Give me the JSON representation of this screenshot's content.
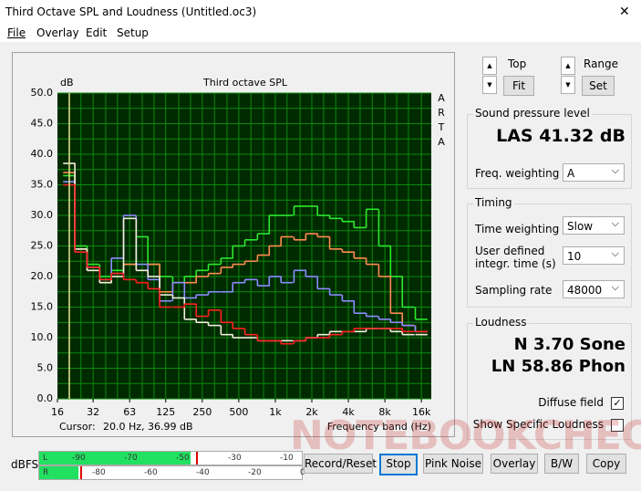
{
  "window": {
    "title": "Third Octave SPL and Loudness (Untitled.oc3)",
    "close": "✕"
  },
  "menu": [
    "File",
    "Overlay",
    "Edit",
    "Setup"
  ],
  "chart_data": {
    "type": "step-line",
    "title": "Third octave SPL",
    "y_label": "dB",
    "x_label": "Frequency band (Hz)",
    "side_label": [
      "A",
      "R",
      "T",
      "A"
    ],
    "cursor": {
      "label": "Cursor:",
      "value": "20.0 Hz, 36.99 dB"
    },
    "x_scale": "log",
    "x": [
      20,
      25,
      31.5,
      40,
      50,
      63,
      80,
      100,
      125,
      160,
      200,
      250,
      315,
      400,
      500,
      630,
      800,
      1000,
      1250,
      1600,
      2000,
      2500,
      3150,
      4000,
      5000,
      6300,
      8000,
      10000,
      12500,
      16000
    ],
    "xlim": [
      16,
      19300
    ],
    "xticks": [
      16,
      {
        "value": 31.5,
        "label": "32"
      },
      63,
      125,
      250,
      500,
      {
        "value": 1000,
        "label": "1k"
      },
      {
        "value": 2000,
        "label": "2k"
      },
      {
        "value": 4000,
        "label": "4k"
      },
      {
        "value": 8000,
        "label": "8k"
      },
      {
        "value": 16000,
        "label": "16k"
      }
    ],
    "ylim": [
      0,
      50
    ],
    "yticks": [
      {
        "value": 0,
        "label": "0.0"
      },
      {
        "value": 5,
        "label": "5.0"
      },
      {
        "value": 10,
        "label": "10.0"
      },
      {
        "value": 15,
        "label": "15.0"
      },
      {
        "value": 20,
        "label": "20.0"
      },
      {
        "value": 25,
        "label": "25.0"
      },
      {
        "value": 30,
        "label": "30.0"
      },
      {
        "value": 35,
        "label": "35.0"
      },
      {
        "value": 40,
        "label": "40.0"
      },
      {
        "value": 45,
        "label": "45.0"
      },
      {
        "value": 50,
        "label": "50.0"
      }
    ],
    "grid": true,
    "series": [
      {
        "color": "#2de82d",
        "values": [
          36.5,
          25,
          22,
          20,
          21,
          22,
          26.5,
          22,
          20,
          19,
          20,
          21,
          22,
          23,
          25,
          26,
          27,
          30,
          30,
          31.5,
          31.5,
          30,
          29.5,
          29,
          28,
          31,
          25,
          20,
          15,
          13
        ]
      },
      {
        "color": "#ff8c50",
        "values": [
          37,
          24.5,
          21,
          19,
          20.5,
          22,
          21,
          22,
          17.5,
          19,
          19,
          20,
          20.5,
          21.5,
          22,
          22.5,
          23.5,
          25,
          26.5,
          26,
          27,
          26.5,
          24.5,
          24,
          23,
          22,
          20,
          14,
          12,
          11
        ]
      },
      {
        "color": "#8c8cff",
        "values": [
          35.5,
          24,
          21.5,
          19.5,
          23,
          30,
          22,
          19.5,
          16,
          19,
          16.5,
          17,
          17.5,
          17.5,
          19,
          19.5,
          18.5,
          20,
          19,
          21,
          20,
          18,
          17,
          16,
          14,
          13.5,
          13,
          12.5,
          12,
          11
        ]
      },
      {
        "color": "#f2f0dc",
        "values": [
          38.5,
          24.5,
          21,
          19,
          20,
          29.5,
          21,
          20,
          17,
          16.5,
          13,
          12.5,
          12,
          10.5,
          10,
          10,
          9.5,
          9.5,
          9.5,
          9.5,
          10,
          10.5,
          11,
          11,
          11,
          11.5,
          11.5,
          11,
          10.5,
          10.5
        ]
      },
      {
        "color": "#ff2020",
        "values": [
          35,
          24,
          21.5,
          19.5,
          20.5,
          19.5,
          19,
          18,
          15,
          15,
          15.5,
          13.5,
          14.5,
          12.5,
          11.5,
          10.5,
          9.5,
          9.5,
          9,
          9.5,
          10,
          10,
          10.5,
          11,
          11.5,
          11.5,
          11.5,
          11.5,
          11,
          11
        ]
      }
    ]
  },
  "controls": {
    "top": "Top",
    "fit": "Fit",
    "range": "Range",
    "set": "Set"
  },
  "spl": {
    "title": "Sound pressure level",
    "reading": "LAS 41.32 dB",
    "freq_weighting": {
      "label": "Freq. weighting",
      "value": "A"
    }
  },
  "timing": {
    "title": "Timing",
    "time_weighting": {
      "label": "Time weighting",
      "value": "Slow"
    },
    "integr_time": {
      "label": "User defined integr. time (s)",
      "value": "10"
    },
    "sampling_rate": {
      "label": "Sampling rate",
      "value": "48000"
    }
  },
  "loudness": {
    "title": "Loudness",
    "n": "N 3.70 Sone",
    "ln": "LN 58.86 Phon",
    "diffuse_field": {
      "label": "Diffuse field",
      "checked": true
    },
    "show_specific": {
      "label": "Show Specific Loudness",
      "checked": false
    }
  },
  "meter": {
    "label": "dBFS",
    "top": [
      "L",
      "-90",
      "-70",
      "-50",
      "-30",
      "-10"
    ],
    "bottom": [
      "R",
      "-80",
      "-60",
      "-40",
      "-20",
      "0"
    ]
  },
  "buttons": [
    "Record/Reset",
    "Stop",
    "Pink Noise",
    "Overlay",
    "B/W",
    "Copy"
  ],
  "watermark": "NOTEBOOKCHECK"
}
